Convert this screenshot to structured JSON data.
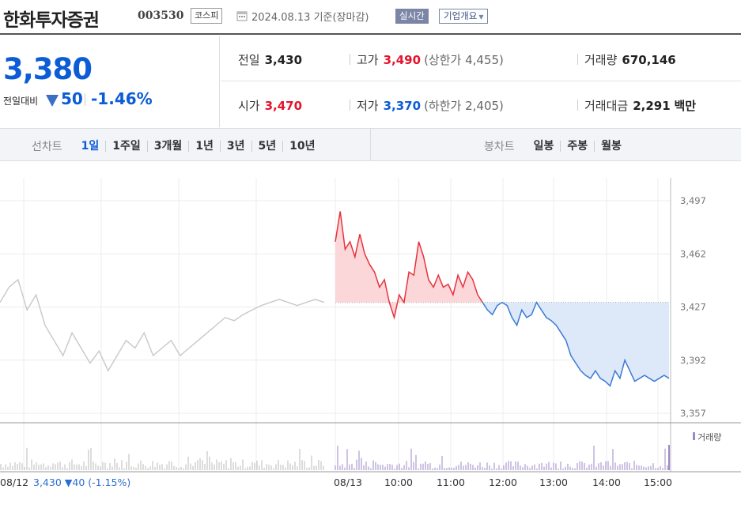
{
  "header": {
    "stock_name": "한화투자증권",
    "stock_code": "003530",
    "market": "코스피",
    "date": "2024.08.13  기준(장마감)",
    "realtime": "실시간",
    "company_overview": "기업개요"
  },
  "price": {
    "current": "3,380",
    "prev_label": "전일대비",
    "diff": "50",
    "pct": "-1.46%"
  },
  "info": {
    "prev_close": {
      "label": "전일",
      "value": "3,430"
    },
    "high": {
      "label": "고가",
      "value": "3,490",
      "limit_label": "(상한가",
      "limit_value": "4,455)"
    },
    "volume": {
      "label": "거래량",
      "value": "670,146"
    },
    "open": {
      "label": "시가",
      "value": "3,470"
    },
    "low": {
      "label": "저가",
      "value": "3,370",
      "limit_label": "(하한가",
      "limit_value": "2,405)"
    },
    "amount": {
      "label": "거래대금",
      "value": "2,291",
      "unit": "백만"
    }
  },
  "period_tabs": {
    "title": "선차트",
    "items": [
      "1일",
      "1주일",
      "3개월",
      "1년",
      "3년",
      "5년",
      "10년"
    ],
    "active": "1일"
  },
  "candle_tabs": {
    "title": "봉차트",
    "items": [
      "일봉",
      "주봉",
      "월봉"
    ]
  },
  "chart_data": {
    "type": "line",
    "y_ticks": [
      "3,497",
      "3,462",
      "3,427",
      "3,392",
      "3,357"
    ],
    "ylim": [
      3357,
      3497
    ],
    "baseline": 3430,
    "x_ticks": [
      "08/13",
      "10:00",
      "11:00",
      "12:00",
      "13:00",
      "14:00",
      "15:00"
    ],
    "prev_day_label": "08/12",
    "prev_day_summary": "3,430 ▼40 (-1.15%)",
    "volume_legend": "거래량",
    "colors": {
      "up": "#e8323c",
      "down": "#3a7bd5",
      "prev": "#c8c8c8",
      "volume": "#9b88c9",
      "prev_volume": "#bbbbbb"
    },
    "prev_day_series": [
      3430,
      3440,
      3445,
      3425,
      3435,
      3415,
      3405,
      3395,
      3410,
      3400,
      3390,
      3398,
      3385,
      3395,
      3405,
      3400,
      3410,
      3395,
      3400,
      3405,
      3395,
      3400,
      3405,
      3410,
      3415,
      3420,
      3418,
      3422,
      3425,
      3428,
      3430,
      3432,
      3430,
      3428,
      3430,
      3432,
      3430
    ],
    "today_series": [
      3470,
      3490,
      3465,
      3470,
      3460,
      3475,
      3462,
      3455,
      3450,
      3440,
      3445,
      3430,
      3420,
      3435,
      3430,
      3450,
      3448,
      3470,
      3460,
      3445,
      3440,
      3448,
      3440,
      3442,
      3435,
      3448,
      3440,
      3450,
      3445,
      3435,
      3430,
      3425,
      3422,
      3428,
      3430,
      3428,
      3420,
      3415,
      3425,
      3420,
      3422,
      3430,
      3425,
      3420,
      3418,
      3415,
      3410,
      3405,
      3395,
      3390,
      3385,
      3382,
      3380,
      3385,
      3380,
      3378,
      3375,
      3385,
      3380,
      3392,
      3385,
      3378,
      3380,
      3382,
      3380,
      3378,
      3380,
      3382,
      3380
    ]
  }
}
